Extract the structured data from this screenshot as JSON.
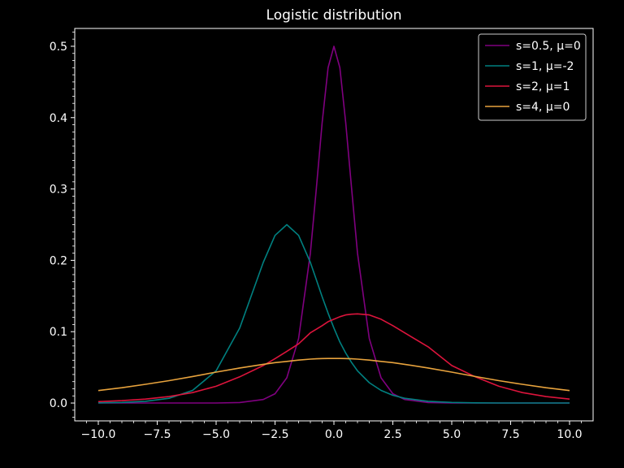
{
  "chart_data": {
    "type": "line",
    "title": "Logistic distribution",
    "xlabel": "",
    "ylabel": "",
    "xlim": [
      -11.0,
      11.0
    ],
    "ylim": [
      -0.025,
      0.525
    ],
    "grid": false,
    "legend_position": "top-right",
    "background": "#000000",
    "axis_color": "#ffffff",
    "xticks": [
      -10.0,
      -7.5,
      -5.0,
      -2.5,
      0.0,
      2.5,
      5.0,
      7.5,
      10.0
    ],
    "xtick_labels": [
      "−10.0",
      "−7.5",
      "−5.0",
      "−2.5",
      "0.0",
      "2.5",
      "5.0",
      "7.5",
      "10.0"
    ],
    "yticks": [
      0.0,
      0.1,
      0.2,
      0.3,
      0.4,
      0.5
    ],
    "ytick_labels": [
      "0.0",
      "0.1",
      "0.2",
      "0.3",
      "0.4",
      "0.5"
    ],
    "x": [
      -10,
      -9,
      -8,
      -7,
      -6,
      -5,
      -4,
      -3,
      -2.5,
      -2,
      -1.5,
      -1,
      -0.75,
      -0.5,
      -0.25,
      0,
      0.25,
      0.5,
      0.75,
      1,
      1.5,
      2,
      2.5,
      3,
      4,
      5,
      6,
      7,
      8,
      9,
      10
    ],
    "series": [
      {
        "name": "s=0.5, μ=0",
        "color": "#800080",
        "values": [
          0.0,
          0.0,
          0.0,
          0.0,
          0.0,
          0.0001,
          0.0007,
          0.005,
          0.013,
          0.0353,
          0.0904,
          0.21,
          0.3,
          0.393,
          0.47,
          0.5,
          0.47,
          0.393,
          0.3,
          0.21,
          0.0904,
          0.0353,
          0.013,
          0.005,
          0.0007,
          0.0001,
          0.0,
          0.0,
          0.0,
          0.0,
          0.0
        ]
      },
      {
        "name": "s=1, μ=-2",
        "color": "#008080",
        "values": [
          0.0003,
          0.0009,
          0.0025,
          0.0066,
          0.0177,
          0.0452,
          0.105,
          0.197,
          0.235,
          0.25,
          0.235,
          0.197,
          0.173,
          0.149,
          0.126,
          0.105,
          0.0856,
          0.0701,
          0.0566,
          0.0452,
          0.0285,
          0.0177,
          0.0109,
          0.0066,
          0.0025,
          0.0009,
          0.0003,
          0.0001,
          0.0,
          0.0,
          0.0
        ]
      },
      {
        "name": "s=2, μ=1",
        "color": "#dc143c",
        "values": [
          0.002,
          0.0033,
          0.0055,
          0.009,
          0.0146,
          0.0235,
          0.0367,
          0.0525,
          0.0622,
          0.0725,
          0.083,
          0.0984,
          0.1035,
          0.1085,
          0.114,
          0.1175,
          0.121,
          0.1235,
          0.1245,
          0.125,
          0.1235,
          0.1175,
          0.1085,
          0.0984,
          0.0787,
          0.0525,
          0.0367,
          0.0235,
          0.0146,
          0.009,
          0.0055
        ]
      },
      {
        "name": "s=4, μ=0",
        "color": "#e8a33d",
        "values": [
          0.0175,
          0.0215,
          0.0262,
          0.0314,
          0.0372,
          0.0433,
          0.0491,
          0.0543,
          0.0566,
          0.0584,
          0.0602,
          0.0615,
          0.062,
          0.0623,
          0.0625,
          0.0625,
          0.0625,
          0.0623,
          0.062,
          0.0615,
          0.0602,
          0.0584,
          0.0566,
          0.0543,
          0.0491,
          0.0433,
          0.0372,
          0.0314,
          0.0262,
          0.0215,
          0.0175
        ]
      }
    ]
  }
}
